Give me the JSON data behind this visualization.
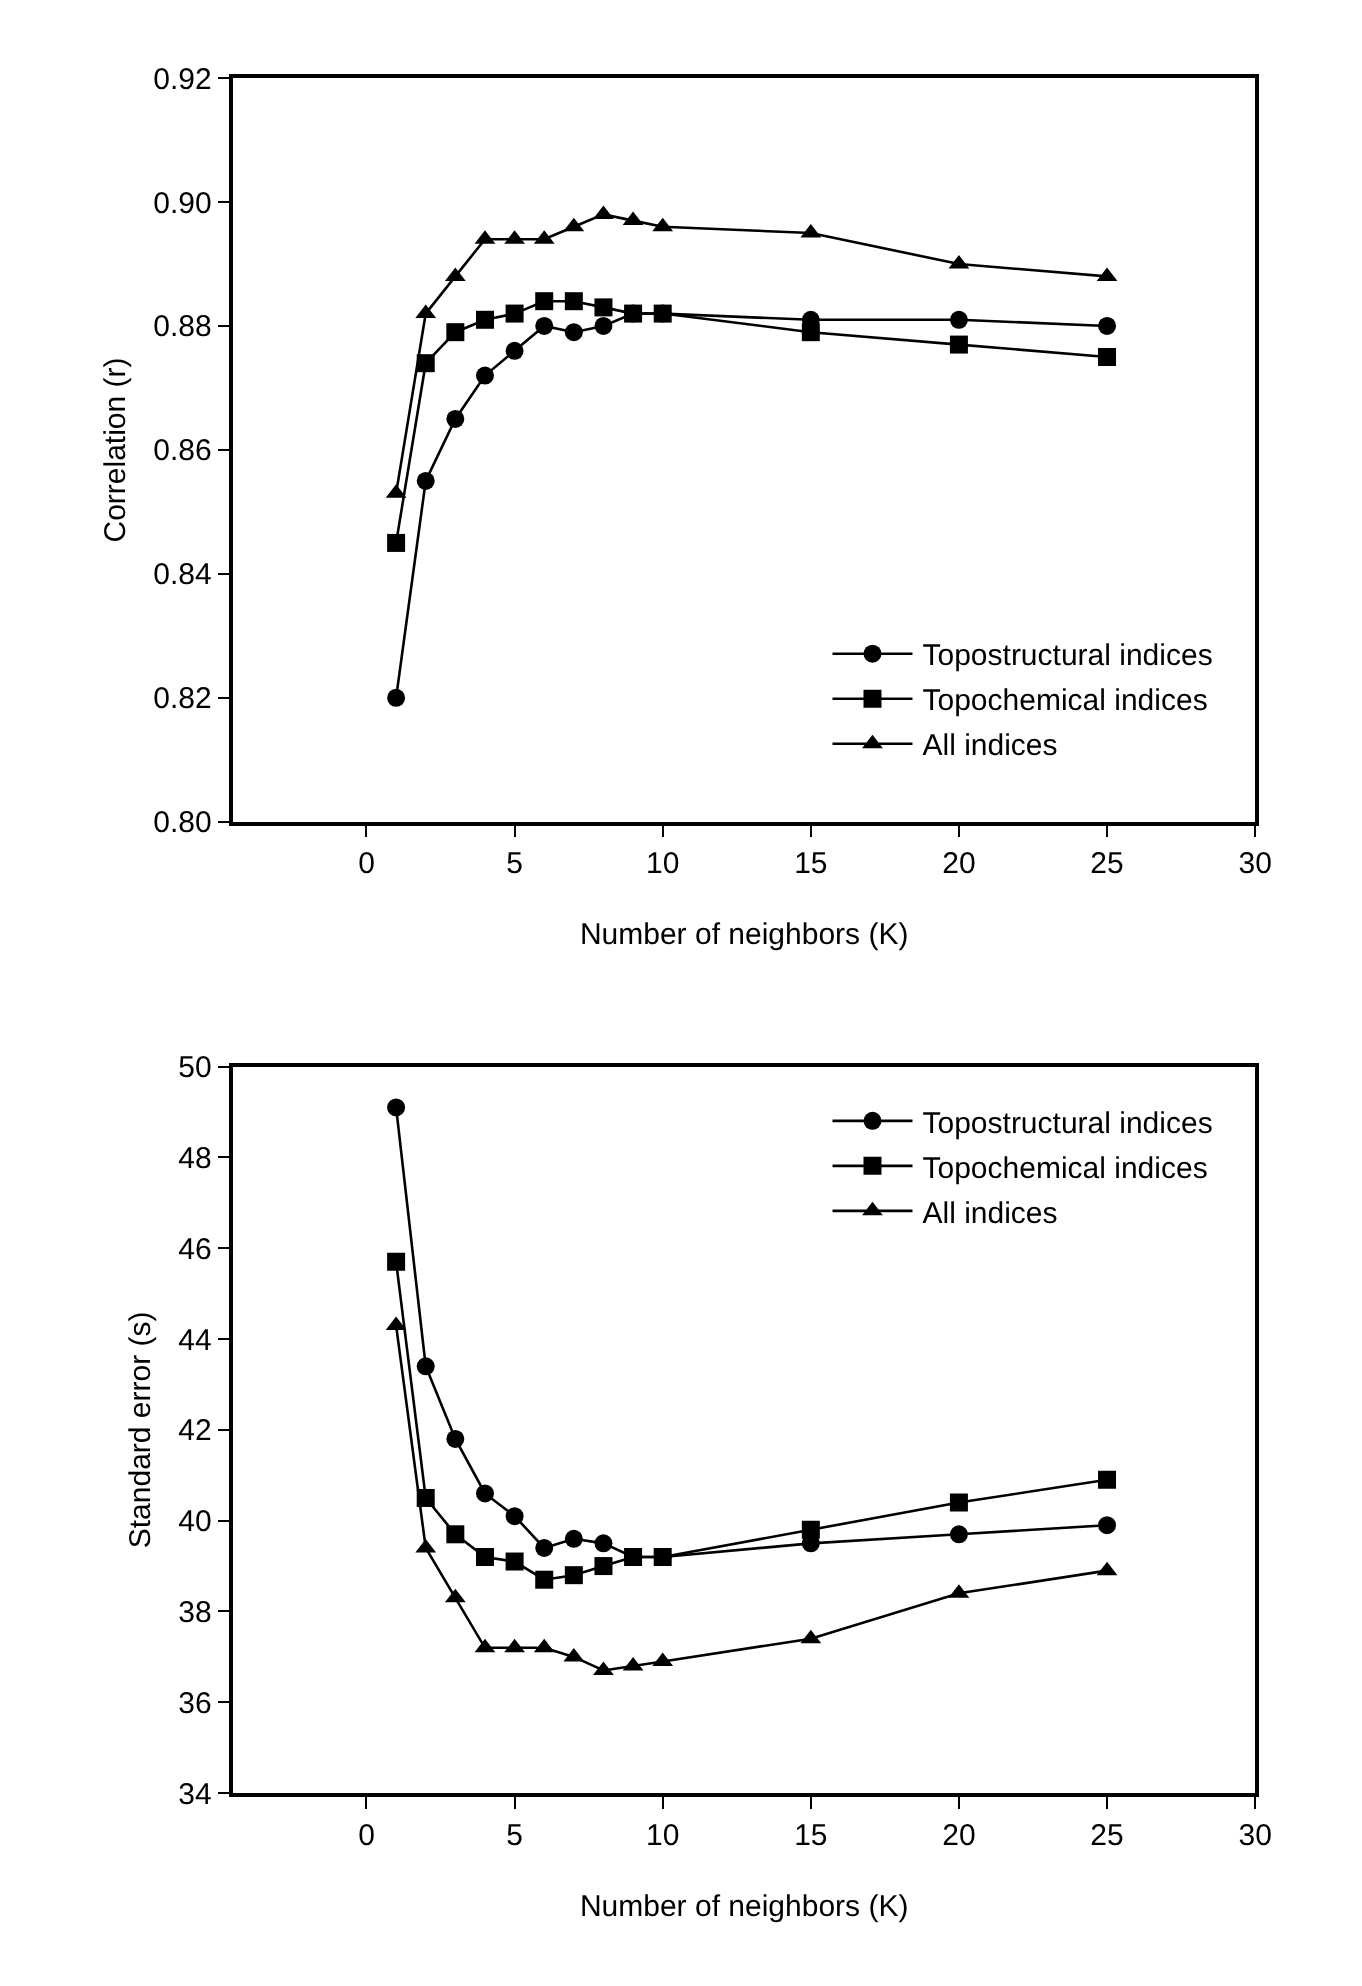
{
  "chart_data": [
    {
      "type": "line",
      "xlabel": "Number of neighbors (K)",
      "ylabel": "Correlation (r)",
      "x": [
        1,
        2,
        3,
        4,
        5,
        6,
        7,
        8,
        9,
        10,
        15,
        20,
        25
      ],
      "xlim": [
        -4.5,
        30
      ],
      "xticks": [
        0,
        5,
        10,
        15,
        20,
        25,
        30
      ],
      "ylim": [
        0.8,
        0.92
      ],
      "yticks": [
        {
          "value": 0.8,
          "label": "0.80"
        },
        {
          "value": 0.82,
          "label": "0.82"
        },
        {
          "value": 0.84,
          "label": "0.84"
        },
        {
          "value": 0.86,
          "label": "0.86"
        },
        {
          "value": 0.88,
          "label": "0.88"
        },
        {
          "value": 0.9,
          "label": "0.90"
        },
        {
          "value": 0.92,
          "label": "0.92"
        }
      ],
      "legend": "bottom right",
      "line_style": "solid",
      "series": [
        {
          "name": "Topostructural indices",
          "color": "#000000",
          "marker": "circle",
          "values": [
            0.82,
            0.855,
            0.865,
            0.872,
            0.876,
            0.88,
            0.879,
            0.88,
            0.882,
            0.882,
            0.881,
            0.881,
            0.88
          ]
        },
        {
          "name": "Topochemical indices",
          "color": "#000000",
          "marker": "square",
          "values": [
            0.845,
            0.874,
            0.879,
            0.881,
            0.882,
            0.884,
            0.884,
            0.883,
            0.882,
            0.882,
            0.879,
            0.877,
            0.875
          ]
        },
        {
          "name": "All indices",
          "color": "#000000",
          "marker": "triangle",
          "values": [
            0.853,
            0.882,
            0.888,
            0.894,
            0.894,
            0.894,
            0.896,
            0.898,
            0.897,
            0.896,
            0.895,
            0.89,
            0.888
          ]
        }
      ]
    },
    {
      "type": "line",
      "xlabel": "Number of neighbors (K)",
      "ylabel": "Standard error (s)",
      "x": [
        1,
        2,
        3,
        4,
        5,
        6,
        7,
        8,
        9,
        10,
        15,
        20,
        25
      ],
      "xlim": [
        -4.5,
        30
      ],
      "xticks": [
        0,
        5,
        10,
        15,
        20,
        25,
        30
      ],
      "ylim": [
        34,
        50
      ],
      "yticks": [
        34,
        36,
        38,
        40,
        42,
        44,
        46,
        48,
        50
      ],
      "legend": "top right",
      "line_style": "solid",
      "series": [
        {
          "name": "Topostructural indices",
          "color": "#000000",
          "marker": "circle",
          "values": [
            49.1,
            43.4,
            41.8,
            40.6,
            40.1,
            39.4,
            39.6,
            39.5,
            39.2,
            39.2,
            39.5,
            39.7,
            39.9
          ]
        },
        {
          "name": "Topochemical indices",
          "color": "#000000",
          "marker": "square",
          "values": [
            45.7,
            40.5,
            39.7,
            39.2,
            39.1,
            38.7,
            38.8,
            39.0,
            39.2,
            39.2,
            39.8,
            40.4,
            40.9
          ]
        },
        {
          "name": "All indices",
          "color": "#000000",
          "marker": "triangle",
          "values": [
            44.3,
            39.4,
            38.3,
            37.2,
            37.2,
            37.2,
            37.0,
            36.7,
            36.8,
            36.9,
            37.4,
            38.4,
            38.9
          ]
        }
      ]
    }
  ]
}
